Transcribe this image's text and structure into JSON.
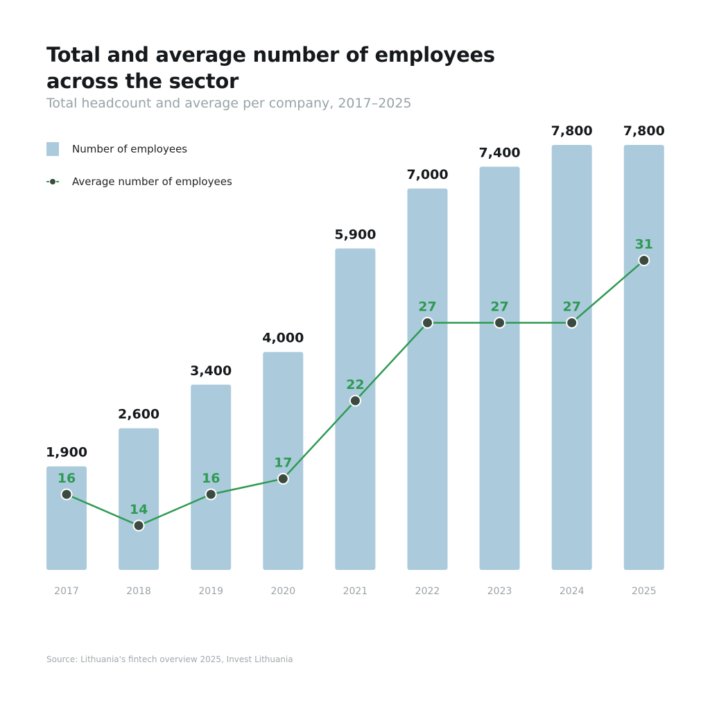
{
  "chart_data": {
    "type": "bar+line",
    "title": "Total and average number of employees across the sector",
    "subtitle": "Total headcount and average per company, 2017–2025",
    "categories": [
      "2017",
      "2018",
      "2019",
      "2020",
      "2021",
      "2022",
      "2023",
      "2024",
      "2025"
    ],
    "series": [
      {
        "name": "Number of employees",
        "type": "bar",
        "values": [
          1900,
          2600,
          3400,
          4000,
          5900,
          7000,
          7400,
          7800,
          7800
        ],
        "labels": [
          "1,900",
          "2,600",
          "3,400",
          "4,000",
          "5,900",
          "7,000",
          "7,400",
          "7,800",
          "7,800"
        ],
        "color": "#abcbdc"
      },
      {
        "name": "Average number of employees",
        "type": "line",
        "values": [
          16,
          14,
          16,
          17,
          22,
          27,
          27,
          27,
          31
        ],
        "color": "#2e9a52",
        "marker_color": "#3d4a3f"
      }
    ],
    "legend": "top-left",
    "grid": false,
    "source": "Source: Lithuania's fintech overview 2025, Invest Lithuania"
  }
}
